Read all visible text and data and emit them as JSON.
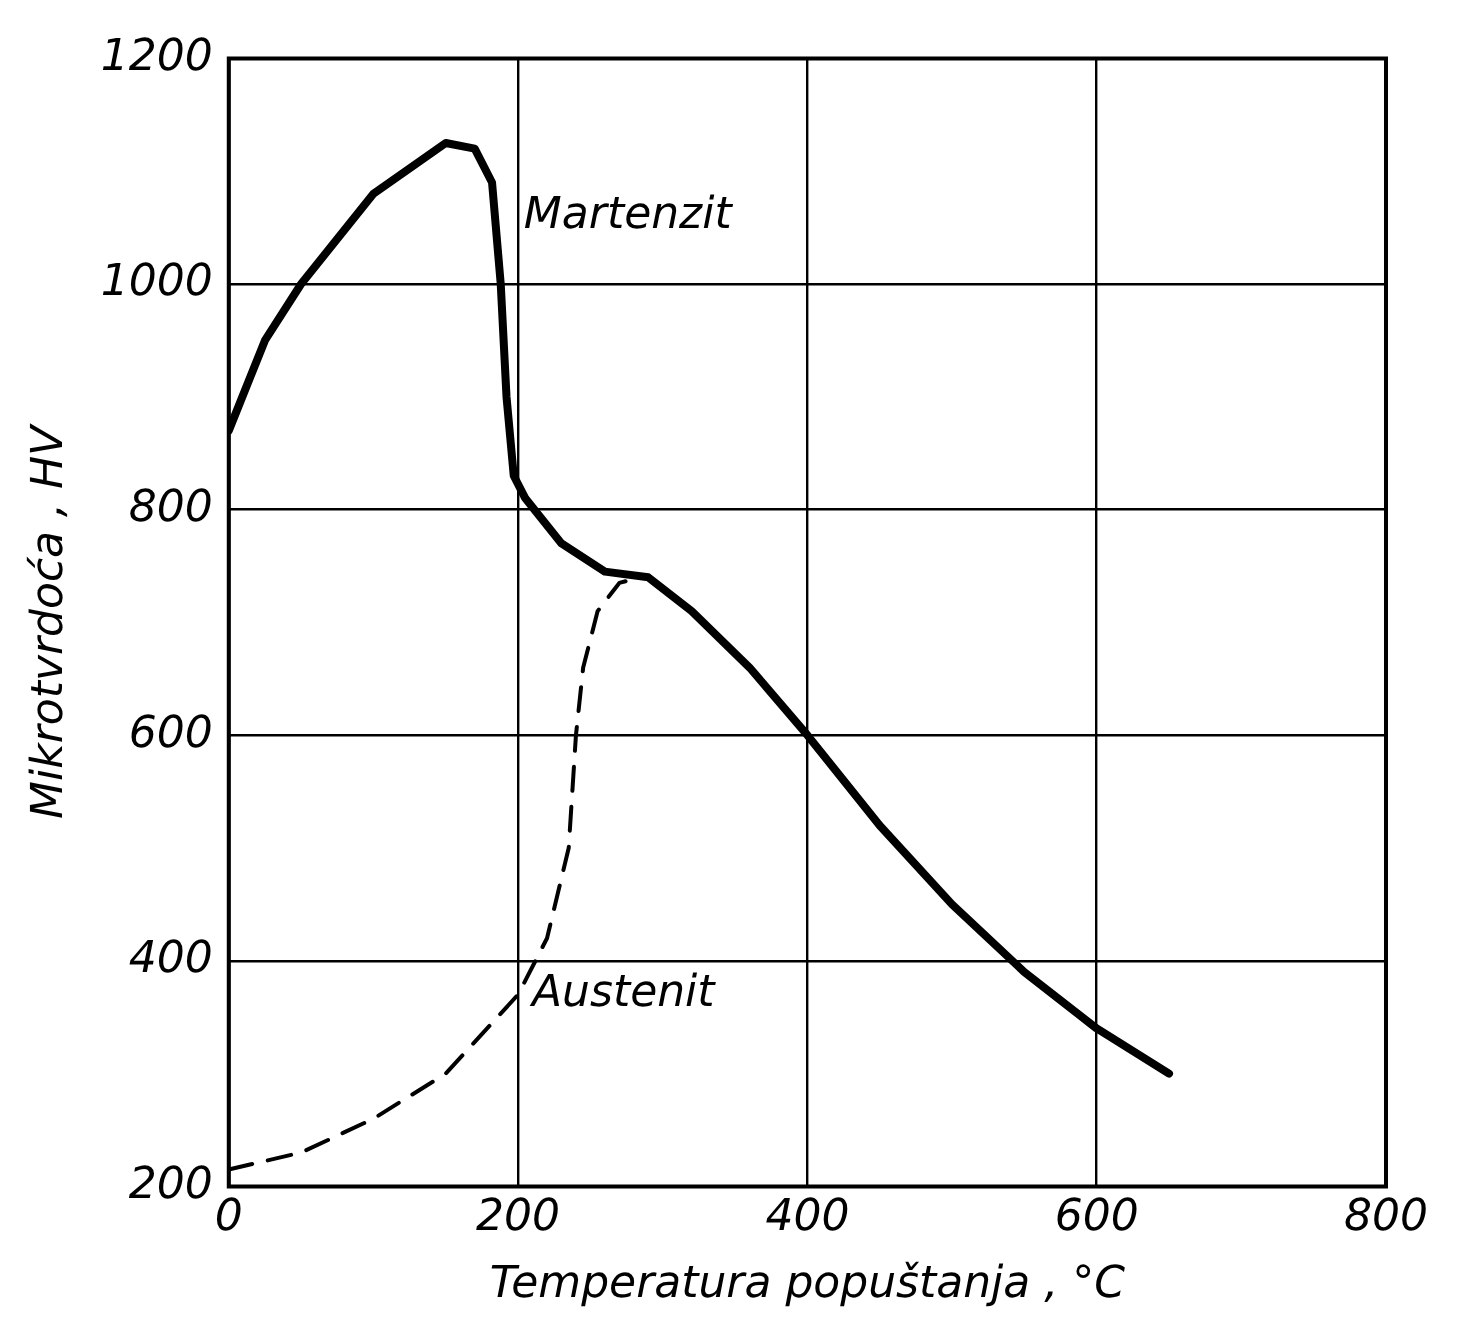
{
  "chart_data": {
    "type": "line",
    "xlabel": "Temperatura popuštanja , °C",
    "ylabel": "Mikrotvrdoća , HV",
    "xlim": [
      0,
      800
    ],
    "xticks": [
      0,
      200,
      400,
      600,
      800
    ],
    "ylim": [
      200,
      1200
    ],
    "yticks": [
      200,
      400,
      600,
      800,
      1000,
      1200
    ],
    "grid": true,
    "marker": "none",
    "series": [
      {
        "color": "#000000",
        "line_style": "solid",
        "x": [
          0,
          25,
          50,
          100,
          150,
          170,
          182,
          188,
          192,
          197,
          205,
          230,
          260,
          290,
          320,
          360,
          400,
          450,
          500,
          550,
          600,
          650
        ],
        "values": [
          870,
          950,
          1000,
          1080,
          1125,
          1120,
          1090,
          1000,
          900,
          830,
          810,
          770,
          745,
          740,
          710,
          660,
          600,
          520,
          450,
          390,
          340,
          300
        ]
      },
      {
        "color": "#000000",
        "line_style": "dashed",
        "x": [
          0,
          50,
          100,
          150,
          200,
          220,
          235,
          240,
          245,
          255,
          270,
          285
        ],
        "values": [
          215,
          230,
          260,
          300,
          370,
          420,
          500,
          600,
          660,
          710,
          735,
          740
        ]
      }
    ],
    "annotations": [
      "Martenzit",
      "Austenit"
    ]
  }
}
